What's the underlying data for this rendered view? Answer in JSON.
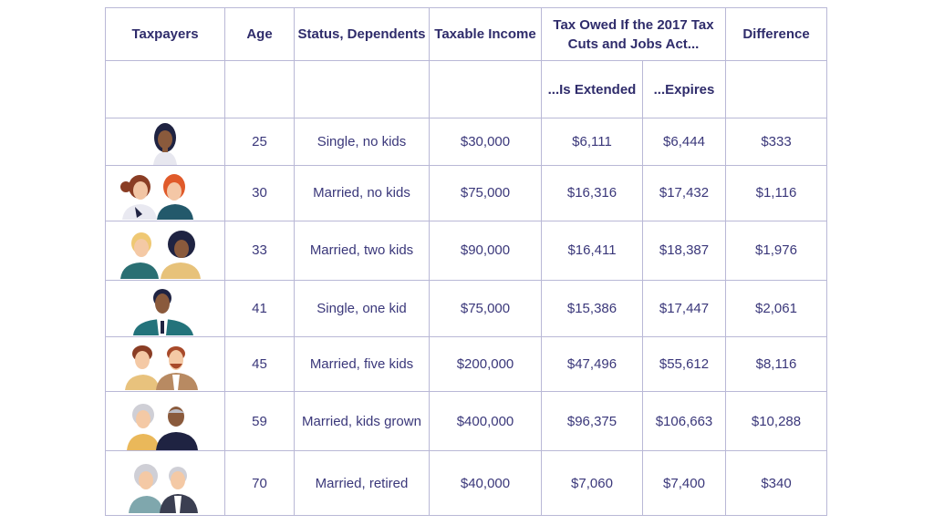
{
  "header": {
    "taxpayers": "Taxpayers",
    "age": "Age",
    "status": "Status, Dependents",
    "income": "Taxable Income",
    "tax_owed": "Tax Owed If the 2017 Tax Cuts and Jobs Act...",
    "extended": "...Is Extended",
    "expires": "...Expires",
    "difference": "Difference"
  },
  "rows": [
    {
      "icon": "single-woman-avatar-icon",
      "age": "25",
      "status": "Single, no kids",
      "income": "$30,000",
      "extended": "$6,111",
      "expires": "$6,444",
      "difference": "$333"
    },
    {
      "icon": "young-couple-avatar-icon",
      "age": "30",
      "status": "Married, no kids",
      "income": "$75,000",
      "extended": "$16,316",
      "expires": "$17,432",
      "difference": "$1,116"
    },
    {
      "icon": "couple-two-kids-avatar-icon",
      "age": "33",
      "status": "Married, two kids",
      "income": "$90,000",
      "extended": "$16,411",
      "expires": "$18,387",
      "difference": "$1,976"
    },
    {
      "icon": "single-man-avatar-icon",
      "age": "41",
      "status": "Single, one kid",
      "income": "$75,000",
      "extended": "$15,386",
      "expires": "$17,447",
      "difference": "$2,061"
    },
    {
      "icon": "couple-five-kids-avatar-icon",
      "age": "45",
      "status": "Married, five kids",
      "income": "$200,000",
      "extended": "$47,496",
      "expires": "$55,612",
      "difference": "$8,116"
    },
    {
      "icon": "older-couple-avatar-icon",
      "age": "59",
      "status": "Married, kids grown",
      "income": "$400,000",
      "extended": "$96,375",
      "expires": "$106,663",
      "difference": "$10,288"
    },
    {
      "icon": "retired-couple-avatar-icon",
      "age": "70",
      "status": "Married, retired",
      "income": "$40,000",
      "extended": "$7,060",
      "expires": "$7,400",
      "difference": "$340"
    }
  ],
  "colors": {
    "text": "#3a377a",
    "grid": "#b9b8d6"
  }
}
